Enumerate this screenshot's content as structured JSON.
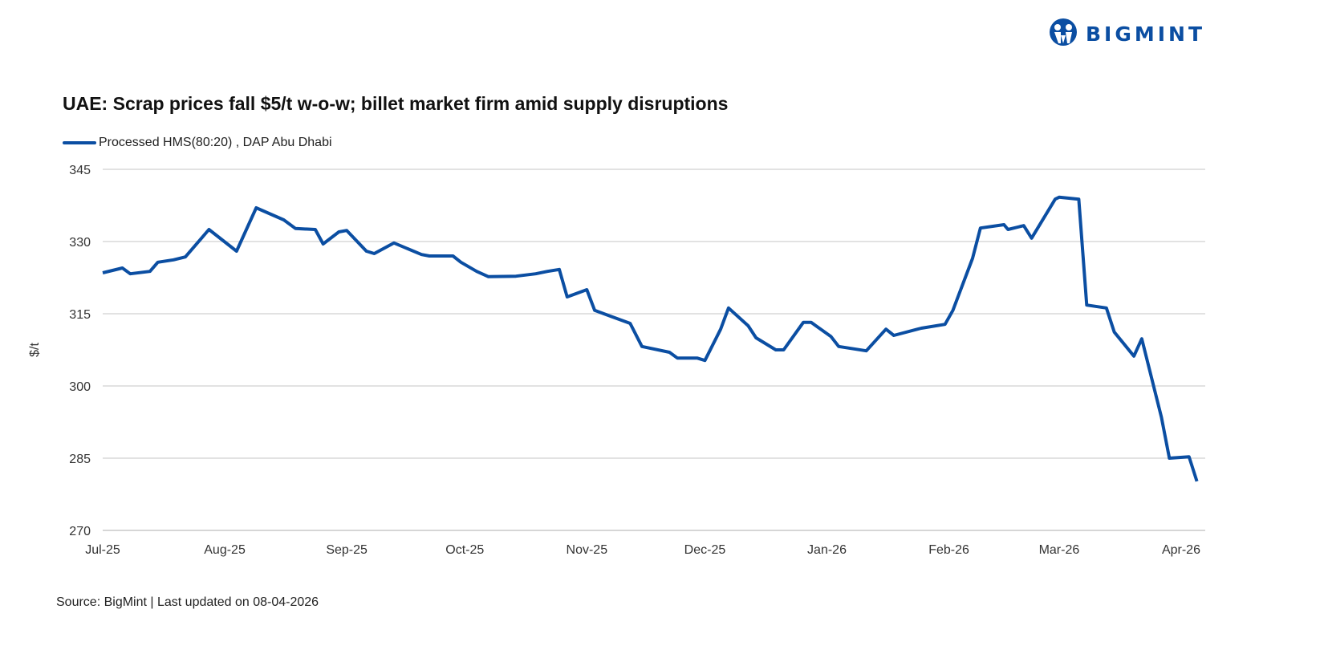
{
  "brand": {
    "name": "BIGMINT",
    "color": "#0b4ea2"
  },
  "source": "Source: BigMint | Last updated on 08-04-2026",
  "chart_data": {
    "type": "line",
    "title": "UAE: Scrap prices fall $5/t w-o-w; billet market firm amid supply disruptions",
    "ylabel": "$/t",
    "xlabel": "",
    "ylim": [
      270,
      345
    ],
    "yticks": [
      "270",
      "285",
      "300",
      "315",
      "330",
      "345"
    ],
    "xtick_labels": [
      "Jul-25",
      "Aug-25",
      "Sep-25",
      "Oct-25",
      "Nov-25",
      "Dec-25",
      "Jan-26",
      "Feb-26",
      "Mar-26",
      "Apr-26"
    ],
    "xtick_dates": [
      "2025-07-01",
      "2025-08-01",
      "2025-09-01",
      "2025-10-01",
      "2025-11-01",
      "2025-12-01",
      "2026-01-01",
      "2026-02-01",
      "2026-03-01",
      "2026-04-01"
    ],
    "grid": "horizontal",
    "legend_position": "top-left",
    "series": [
      {
        "name": "Processed HMS(80:20) , DAP Abu Dhabi",
        "color": "#0b4ea2",
        "points": [
          [
            "2025-07-01",
            323.5
          ],
          [
            "2025-07-06",
            324.5
          ],
          [
            "2025-07-08",
            323.3
          ],
          [
            "2025-07-13",
            323.8
          ],
          [
            "2025-07-15",
            325.7
          ],
          [
            "2025-07-19",
            326.2
          ],
          [
            "2025-07-22",
            326.8
          ],
          [
            "2025-07-28",
            332.5
          ],
          [
            "2025-08-04",
            328
          ],
          [
            "2025-08-09",
            337
          ],
          [
            "2025-08-16",
            334.5
          ],
          [
            "2025-08-19",
            332.7
          ],
          [
            "2025-08-24",
            332.5
          ],
          [
            "2025-08-26",
            329.5
          ],
          [
            "2025-08-30",
            332
          ],
          [
            "2025-09-01",
            332.3
          ],
          [
            "2025-09-06",
            328
          ],
          [
            "2025-09-08",
            327.5
          ],
          [
            "2025-09-13",
            329.7
          ],
          [
            "2025-09-20",
            327.3
          ],
          [
            "2025-09-22",
            327
          ],
          [
            "2025-09-28",
            327
          ],
          [
            "2025-09-30",
            325.7
          ],
          [
            "2025-10-04",
            323.8
          ],
          [
            "2025-10-07",
            322.7
          ],
          [
            "2025-10-14",
            322.8
          ],
          [
            "2025-10-19",
            323.3
          ],
          [
            "2025-10-22",
            323.8
          ],
          [
            "2025-10-25",
            324.2
          ],
          [
            "2025-10-27",
            318.5
          ],
          [
            "2025-11-01",
            320
          ],
          [
            "2025-11-03",
            315.7
          ],
          [
            "2025-11-12",
            313
          ],
          [
            "2025-11-15",
            308.2
          ],
          [
            "2025-11-22",
            307
          ],
          [
            "2025-11-24",
            305.8
          ],
          [
            "2025-11-29",
            305.8
          ],
          [
            "2025-12-01",
            305.3
          ],
          [
            "2025-12-05",
            311.8
          ],
          [
            "2025-12-07",
            316.2
          ],
          [
            "2025-12-12",
            312.5
          ],
          [
            "2025-12-14",
            310
          ],
          [
            "2025-12-19",
            307.5
          ],
          [
            "2025-12-21",
            307.5
          ],
          [
            "2025-12-26",
            313.2
          ],
          [
            "2025-12-28",
            313.2
          ],
          [
            "2026-01-02",
            310.3
          ],
          [
            "2026-01-04",
            308.2
          ],
          [
            "2026-01-11",
            307.3
          ],
          [
            "2026-01-16",
            311.8
          ],
          [
            "2026-01-18",
            310.5
          ],
          [
            "2026-01-25",
            312
          ],
          [
            "2026-01-31",
            312.8
          ],
          [
            "2026-02-02",
            315.7
          ],
          [
            "2026-02-07",
            326.5
          ],
          [
            "2026-02-09",
            332.8
          ],
          [
            "2026-02-15",
            333.5
          ],
          [
            "2026-02-16",
            332.5
          ],
          [
            "2026-02-20",
            333.3
          ],
          [
            "2026-02-22",
            330.7
          ],
          [
            "2026-02-28",
            338.8
          ],
          [
            "2026-03-01",
            339.2
          ],
          [
            "2026-03-06",
            338.8
          ],
          [
            "2026-03-08",
            316.8
          ],
          [
            "2026-03-13",
            316.2
          ],
          [
            "2026-03-15",
            311.2
          ],
          [
            "2026-03-20",
            306.2
          ],
          [
            "2026-03-22",
            309.8
          ],
          [
            "2026-03-27",
            293.5
          ],
          [
            "2026-03-29",
            285
          ],
          [
            "2026-04-03",
            285.3
          ],
          [
            "2026-04-05",
            280.2
          ]
        ]
      }
    ]
  }
}
